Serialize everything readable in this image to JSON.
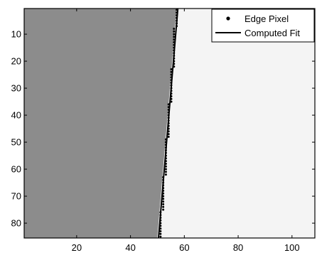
{
  "chart_data": {
    "type": "scatter",
    "title": "",
    "xlabel": "",
    "ylabel": "",
    "xlim": [
      0.5,
      108.5
    ],
    "ylim": [
      0.5,
      85.5
    ],
    "y_reversed": true,
    "x_ticks": [
      20,
      40,
      60,
      80,
      100
    ],
    "y_ticks": [
      10,
      20,
      30,
      40,
      50,
      60,
      70,
      80
    ],
    "grid": false,
    "background_image": {
      "description_colors": {
        "dark_region": "#8c8c8c",
        "light_region": "#f4f4f4"
      },
      "boundary_line": {
        "x_at_top": 57.6,
        "x_at_bottom": 50.4
      }
    },
    "legend": {
      "placement": "top-right",
      "entries": [
        {
          "label": "Edge Pixel",
          "marker": "dot"
        },
        {
          "label": "Computed Fit",
          "marker": "line"
        }
      ]
    },
    "series": [
      {
        "name": "Edge Pixel",
        "marker": "dot",
        "color": "#000000",
        "x": [
          57,
          57,
          57,
          57,
          57,
          57,
          57,
          56,
          56,
          56,
          56,
          56,
          56,
          56,
          56,
          56,
          56,
          56,
          56,
          56,
          56,
          56,
          55,
          55,
          55,
          55,
          55,
          55,
          55,
          55,
          55,
          55,
          55,
          55,
          55,
          54,
          54,
          54,
          54,
          54,
          54,
          54,
          54,
          54,
          54,
          54,
          54,
          54,
          53,
          53,
          53,
          53,
          53,
          53,
          53,
          53,
          53,
          53,
          53,
          53,
          53,
          53,
          52,
          52,
          52,
          52,
          52,
          52,
          52,
          52,
          52,
          52,
          52,
          52,
          52,
          51,
          51,
          51,
          51,
          51,
          51,
          51,
          51,
          51,
          51
        ],
        "y": [
          1,
          2,
          3,
          4,
          5,
          6,
          7,
          8,
          9,
          10,
          11,
          12,
          13,
          14,
          15,
          16,
          17,
          18,
          19,
          20,
          21,
          22,
          23,
          24,
          25,
          26,
          27,
          28,
          29,
          30,
          31,
          32,
          33,
          34,
          35,
          36,
          37,
          38,
          39,
          40,
          41,
          42,
          43,
          44,
          45,
          46,
          47,
          48,
          49,
          50,
          51,
          52,
          53,
          54,
          55,
          56,
          57,
          58,
          59,
          60,
          61,
          62,
          63,
          64,
          65,
          66,
          67,
          68,
          69,
          70,
          71,
          72,
          73,
          74,
          75,
          76,
          77,
          78,
          79,
          80,
          81,
          82,
          83,
          84,
          85
        ]
      },
      {
        "name": "Computed Fit",
        "marker": "line",
        "color": "#000000",
        "x": [
          57.6,
          50.4
        ],
        "y": [
          0.5,
          85.5
        ]
      }
    ]
  }
}
